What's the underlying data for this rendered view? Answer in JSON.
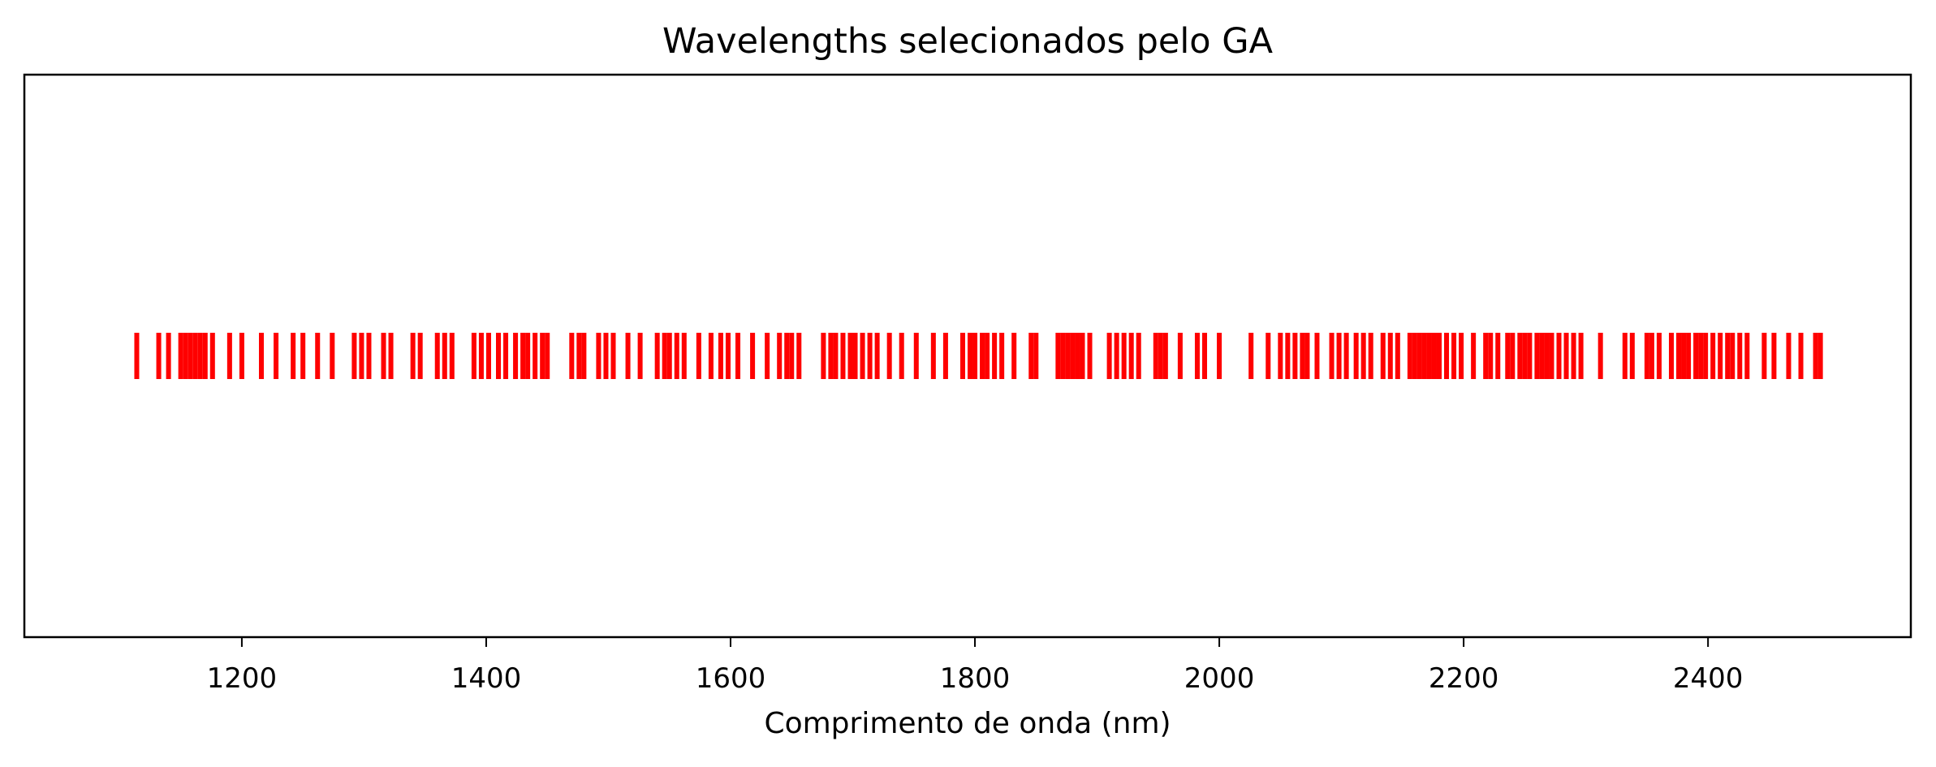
{
  "chart_data": {
    "type": "bar",
    "title": "Wavelengths selecionados pelo GA",
    "xlabel": "Comprimento de onda (nm)",
    "ylabel": "",
    "xlim": [
      1022,
      2566
    ],
    "xticks": [
      1200,
      1400,
      1600,
      1800,
      2000,
      2200,
      2400
    ],
    "xtick_labels": [
      "1200",
      "1400",
      "1600",
      "1800",
      "2000",
      "2200",
      "2400"
    ],
    "yticks_visible": false,
    "grid": false,
    "legend": "none",
    "mark_color": "#ff0000",
    "mark_height": 1,
    "mark_width_nm": 4,
    "series": [
      {
        "values": [
          1114,
          1132,
          1140,
          1150,
          1154,
          1158,
          1162,
          1166,
          1170,
          1176,
          1190,
          1200,
          1216,
          1228,
          1242,
          1250,
          1262,
          1274,
          1292,
          1298,
          1304,
          1316,
          1322,
          1340,
          1346,
          1360,
          1366,
          1372,
          1390,
          1396,
          1402,
          1410,
          1416,
          1424,
          1430,
          1434,
          1440,
          1446,
          1450,
          1470,
          1476,
          1480,
          1492,
          1498,
          1504,
          1516,
          1526,
          1540,
          1546,
          1550,
          1556,
          1562,
          1574,
          1584,
          1592,
          1598,
          1606,
          1618,
          1630,
          1640,
          1646,
          1650,
          1656,
          1676,
          1682,
          1686,
          1692,
          1698,
          1702,
          1708,
          1714,
          1720,
          1730,
          1740,
          1752,
          1766,
          1776,
          1790,
          1796,
          1800,
          1806,
          1810,
          1816,
          1822,
          1832,
          1846,
          1850,
          1868,
          1872,
          1876,
          1880,
          1884,
          1888,
          1894,
          1910,
          1916,
          1922,
          1928,
          1934,
          1948,
          1952,
          1956,
          1968,
          1982,
          1988,
          2000,
          2026,
          2040,
          2050,
          2056,
          2062,
          2068,
          2072,
          2080,
          2092,
          2098,
          2104,
          2112,
          2118,
          2124,
          2134,
          2140,
          2146,
          2156,
          2160,
          2164,
          2168,
          2172,
          2176,
          2180,
          2186,
          2192,
          2198,
          2208,
          2218,
          2222,
          2228,
          2236,
          2240,
          2246,
          2250,
          2254,
          2260,
          2264,
          2268,
          2272,
          2278,
          2284,
          2290,
          2296,
          2312,
          2332,
          2338,
          2350,
          2354,
          2360,
          2370,
          2376,
          2380,
          2384,
          2390,
          2394,
          2398,
          2404,
          2410,
          2416,
          2420,
          2426,
          2432,
          2446,
          2454,
          2466,
          2476,
          2488,
          2492
        ]
      }
    ]
  }
}
